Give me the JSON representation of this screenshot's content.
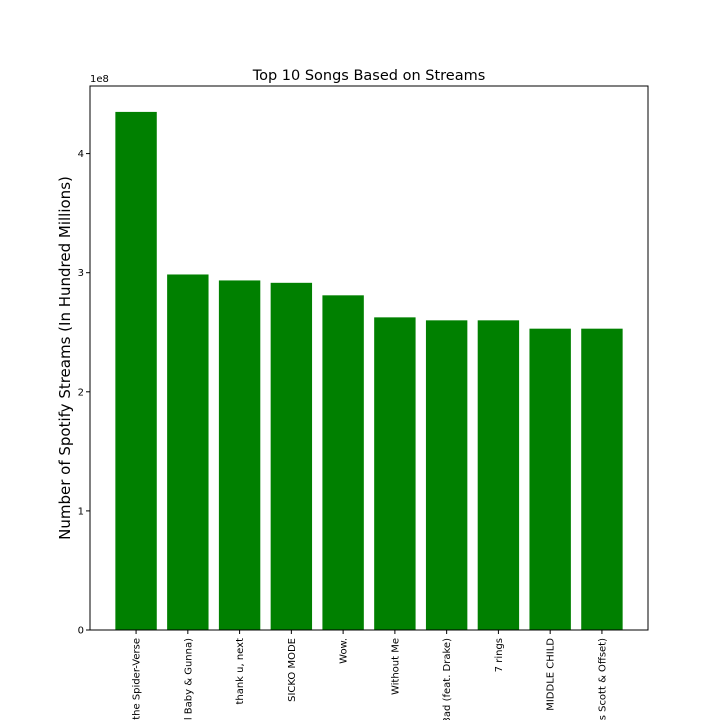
{
  "chart_data": {
    "type": "bar",
    "title": "Top 10 Songs Based on Streams",
    "xlabel": "",
    "ylabel": "Number of Spotify Streams (In Hundred Millions)",
    "y_offset_text": "1e8",
    "categories": [
      "the Spider-Verse",
      "l Baby & Gunna)",
      "thank u, next",
      "SICKO MODE",
      "Wow.",
      "Without Me",
      "3ad (feat. Drake)",
      "7 rings",
      "MIDDLE CHILD",
      "s Scott & Offset)"
    ],
    "values": [
      435000000,
      298500000,
      293500000,
      291500000,
      281000000,
      262500000,
      260000000,
      260000000,
      253000000,
      253000000
    ],
    "yticks": [
      0,
      100000000,
      200000000,
      300000000,
      400000000
    ],
    "ytick_labels": [
      "0",
      "1",
      "2",
      "3",
      "4"
    ],
    "ylim": [
      0,
      456750000
    ],
    "bar_color": "#008000",
    "grid": false,
    "legend": "none"
  }
}
